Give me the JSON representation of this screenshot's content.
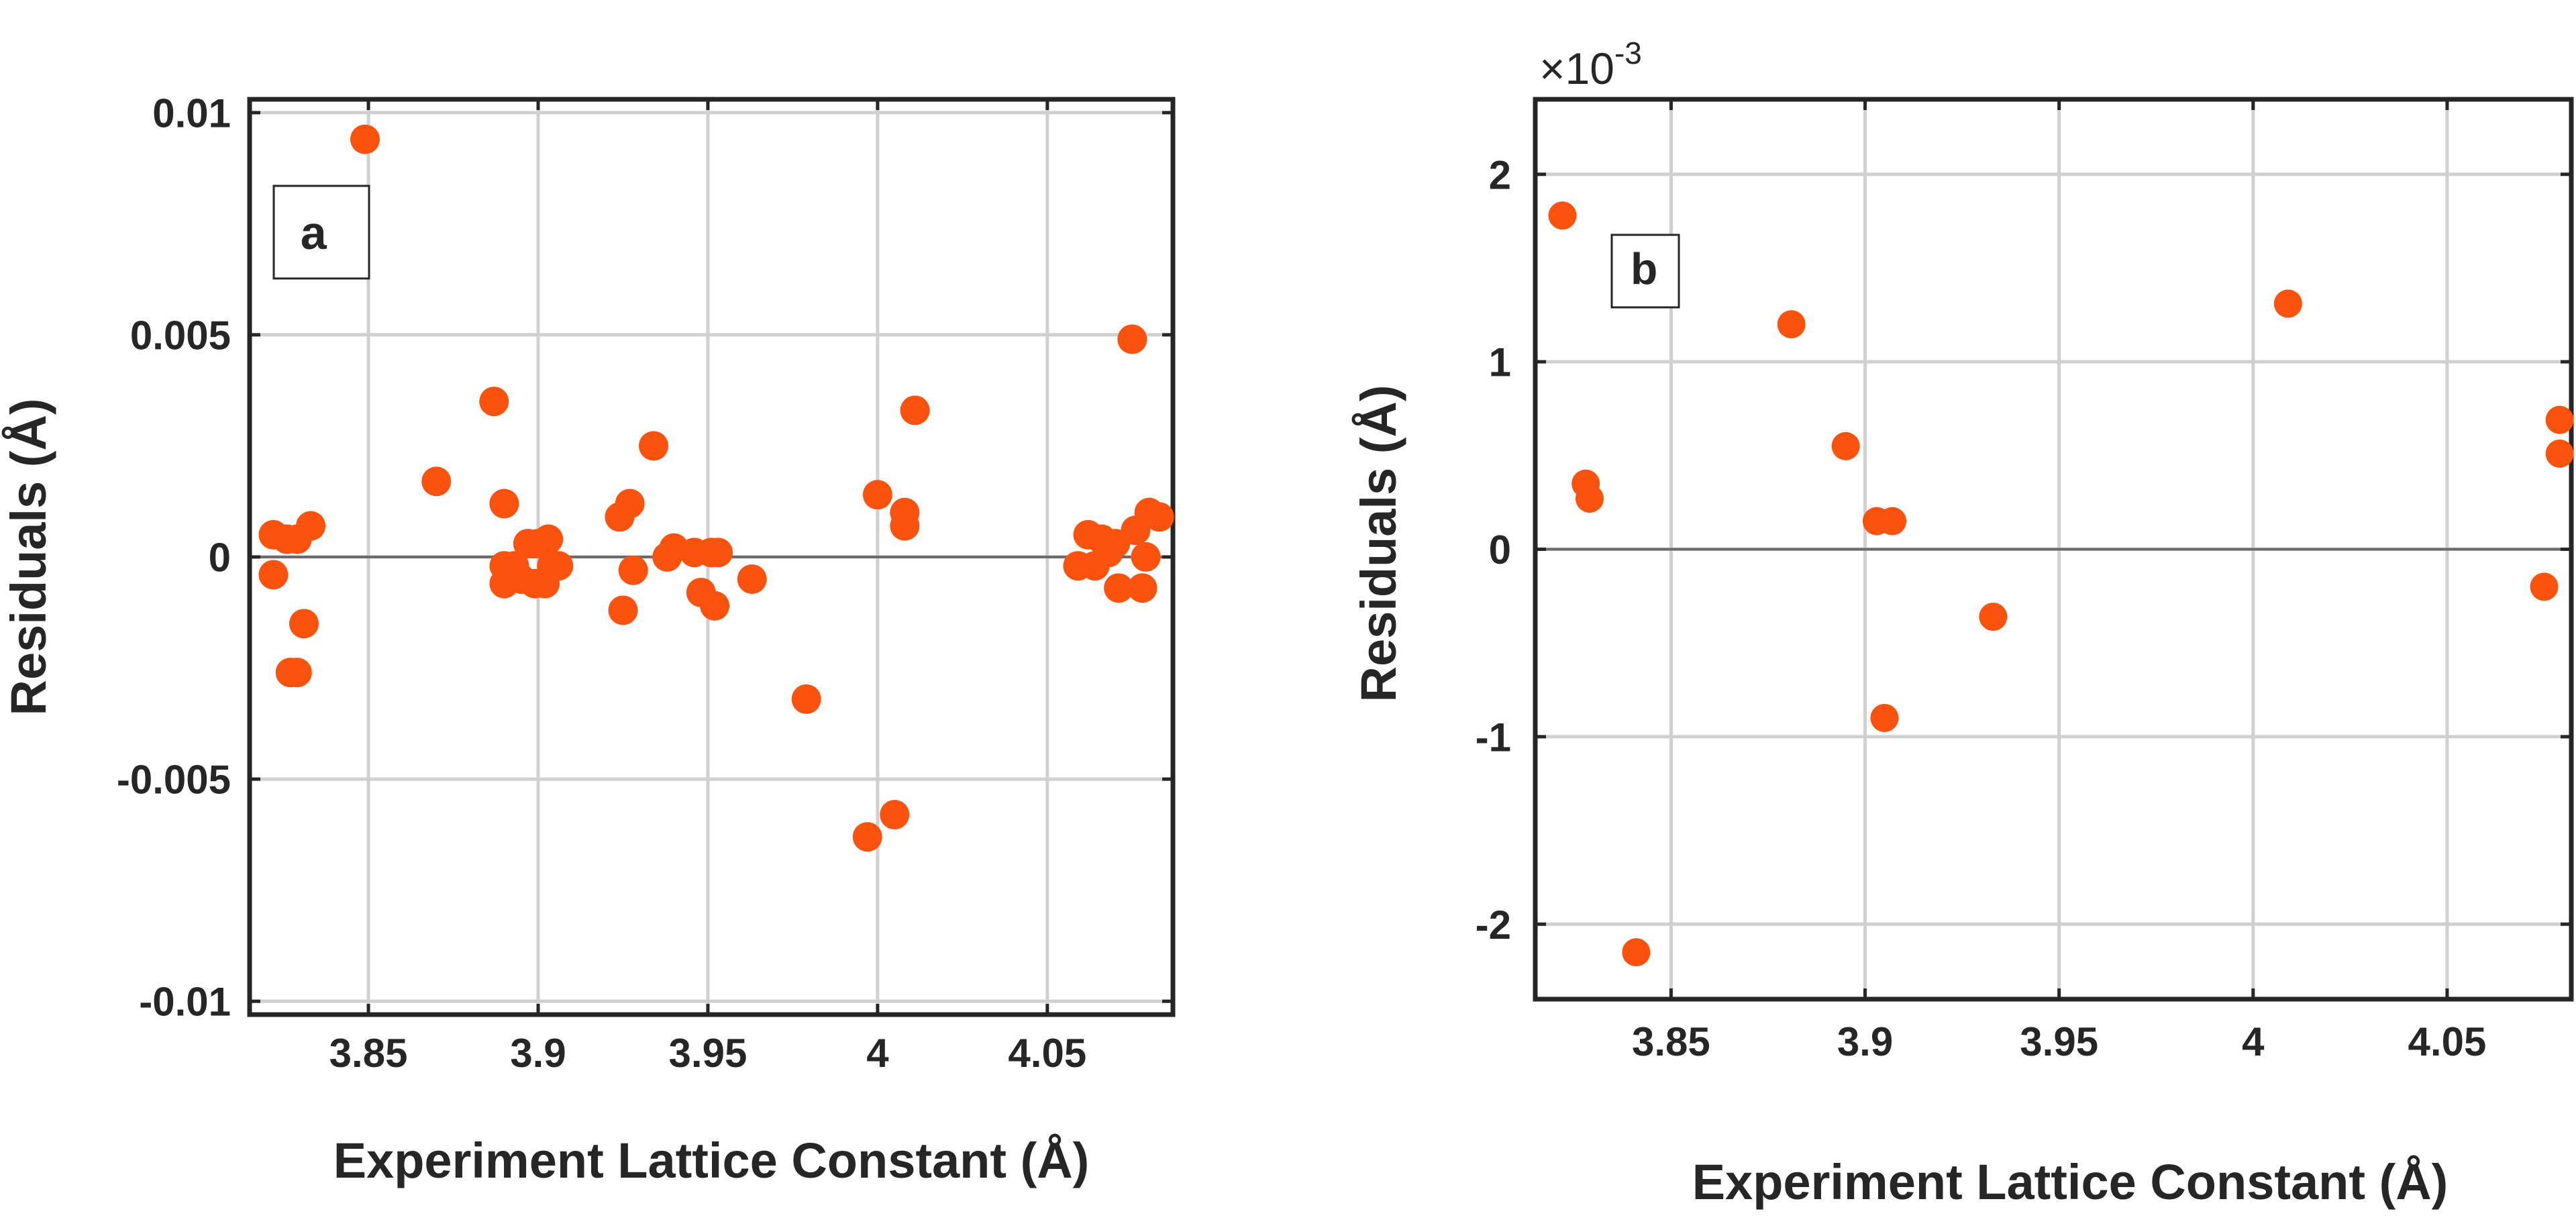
{
  "colors": {
    "marker": "#fb520d",
    "grid": "#d0d0d0",
    "axis": "#262626",
    "zero_line": "#6b6b6b"
  },
  "chart_data": [
    {
      "type": "scatter",
      "panel_label": "a",
      "xlabel": "Experiment Lattice Constant (Å)",
      "ylabel": "Residuals (Å)",
      "xlim": [
        3.815,
        4.087
      ],
      "ylim": [
        -0.0103,
        0.0103
      ],
      "xticks": [
        3.85,
        3.9,
        3.95,
        4,
        4.05
      ],
      "xtick_labels": [
        "3.85",
        "3.9",
        "3.95",
        "4",
        "4.05"
      ],
      "yticks": [
        -0.01,
        -0.005,
        0,
        0.005,
        0.01
      ],
      "ytick_labels": [
        "-0.01",
        "-0.005",
        "0",
        "0.005",
        "0.01"
      ],
      "exponent_label": "",
      "grid": true,
      "zero_line": true,
      "points": [
        [
          3.822,
          0.0005
        ],
        [
          3.822,
          -0.0004
        ],
        [
          3.826,
          0.0004
        ],
        [
          3.829,
          0.0004
        ],
        [
          3.833,
          0.0007
        ],
        [
          3.827,
          -0.0026
        ],
        [
          3.829,
          -0.0026
        ],
        [
          3.831,
          -0.0015
        ],
        [
          3.849,
          0.0094
        ],
        [
          3.87,
          0.0017
        ],
        [
          3.887,
          0.0035
        ],
        [
          3.89,
          0.0012
        ],
        [
          3.89,
          -0.0002
        ],
        [
          3.89,
          -0.0006
        ],
        [
          3.893,
          -0.0002
        ],
        [
          3.895,
          -0.0005
        ],
        [
          3.897,
          0.0003
        ],
        [
          3.899,
          -0.0006
        ],
        [
          3.9,
          0.0003
        ],
        [
          3.902,
          -0.0006
        ],
        [
          3.903,
          0.0004
        ],
        [
          3.904,
          -0.0002
        ],
        [
          3.906,
          -0.0002
        ],
        [
          3.924,
          0.0009
        ],
        [
          3.925,
          -0.0012
        ],
        [
          3.927,
          0.0012
        ],
        [
          3.928,
          -0.0003
        ],
        [
          3.934,
          0.0025
        ],
        [
          3.938,
          0.0
        ],
        [
          3.94,
          0.0002
        ],
        [
          3.946,
          0.0001
        ],
        [
          3.948,
          -0.0008
        ],
        [
          3.951,
          0.0001
        ],
        [
          3.952,
          -0.0011
        ],
        [
          3.953,
          0.0001
        ],
        [
          3.963,
          -0.0005
        ],
        [
          3.979,
          -0.0032
        ],
        [
          3.997,
          -0.0063
        ],
        [
          4.0,
          0.0014
        ],
        [
          4.005,
          -0.0058
        ],
        [
          4.008,
          0.001
        ],
        [
          4.008,
          0.0007
        ],
        [
          4.011,
          0.0033
        ],
        [
          4.059,
          -0.0002
        ],
        [
          4.062,
          0.0005
        ],
        [
          4.064,
          -0.0002
        ],
        [
          4.066,
          0.0004
        ],
        [
          4.068,
          0.0001
        ],
        [
          4.07,
          0.0003
        ],
        [
          4.071,
          -0.0007
        ],
        [
          4.075,
          0.0049
        ],
        [
          4.076,
          0.0006
        ],
        [
          4.078,
          -0.0007
        ],
        [
          4.079,
          0.0
        ],
        [
          4.08,
          0.001
        ],
        [
          4.083,
          0.0009
        ]
      ]
    },
    {
      "type": "scatter",
      "panel_label": "b",
      "xlabel": "Experiment Lattice Constant (Å)",
      "ylabel": "Residuals (Å)",
      "xlim": [
        3.815,
        4.082
      ],
      "ylim": [
        -0.0024,
        0.0024
      ],
      "xticks": [
        3.85,
        3.9,
        3.95,
        4,
        4.05
      ],
      "xtick_labels": [
        "3.85",
        "3.9",
        "3.95",
        "4",
        "4.05"
      ],
      "yticks": [
        -0.002,
        -0.001,
        0,
        0.001,
        0.002
      ],
      "ytick_labels": [
        "-2",
        "-1",
        "0",
        "1",
        "2"
      ],
      "exponent_label": "×10",
      "exponent_power": "-3",
      "grid": true,
      "zero_line": true,
      "points": [
        [
          3.822,
          0.00178
        ],
        [
          3.841,
          -0.00215
        ],
        [
          3.828,
          0.00035
        ],
        [
          3.829,
          0.00027
        ],
        [
          3.881,
          0.0012
        ],
        [
          3.895,
          0.00055
        ],
        [
          3.903,
          0.00015
        ],
        [
          3.907,
          0.00015
        ],
        [
          3.905,
          -0.0009
        ],
        [
          3.933,
          -0.00036
        ],
        [
          4.009,
          0.00131
        ],
        [
          4.075,
          -0.0002
        ],
        [
          4.079,
          0.00069
        ],
        [
          4.079,
          0.00051
        ]
      ]
    }
  ]
}
